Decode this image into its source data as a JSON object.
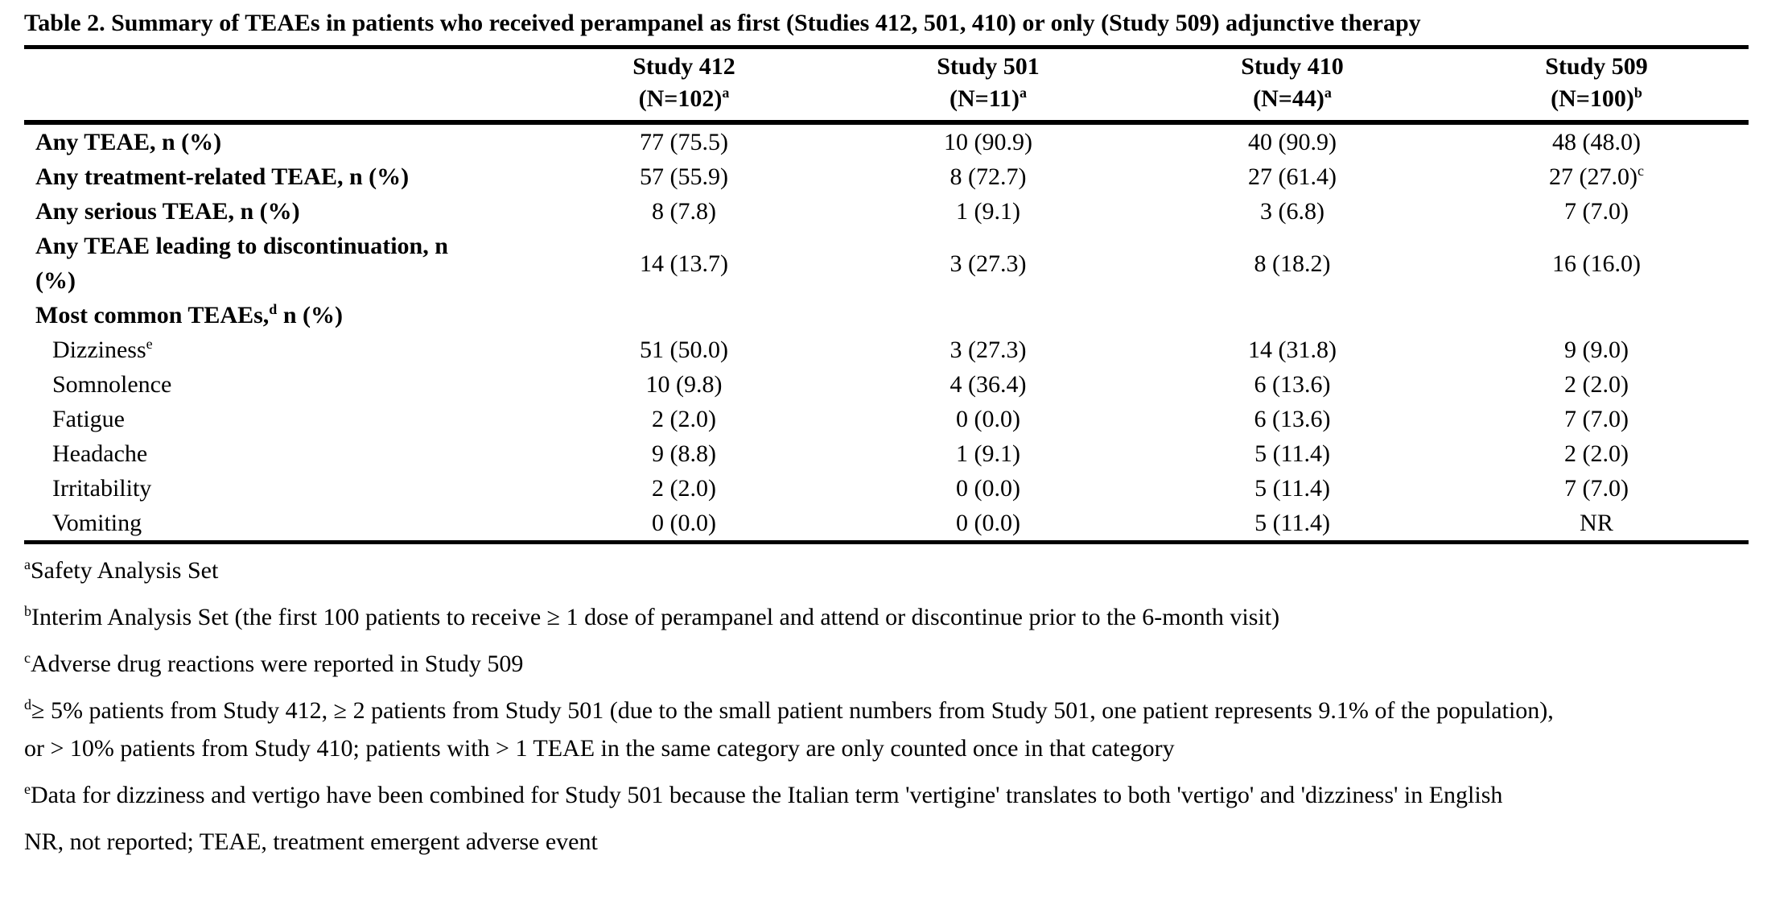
{
  "title": "Table 2. Summary of TEAEs in patients who received perampanel as first (Studies 412, 501, 410) or only (Study 509) adjunctive therapy",
  "colors": {
    "text": "#000000",
    "background": "#ffffff",
    "rules": "#000000"
  },
  "table": {
    "columns": [
      {
        "study": "Study 412",
        "n": "(N=102)",
        "sup": "a"
      },
      {
        "study": "Study 501",
        "n": "(N=11)",
        "sup": "a"
      },
      {
        "study": "Study 410",
        "n": "(N=44)",
        "sup": "a"
      },
      {
        "study": "Study 509",
        "n": "(N=100)",
        "sup": "b"
      }
    ],
    "rows": [
      {
        "bold": true,
        "indent": false,
        "label": [
          {
            "t": "Any TEAE, n (%)"
          }
        ],
        "values": [
          "77 (75.5)",
          "10 (90.9)",
          "40 (90.9)",
          "48 (48.0)"
        ]
      },
      {
        "bold": true,
        "indent": false,
        "label": [
          {
            "t": "Any treatment-related TEAE, n (%)"
          }
        ],
        "values": [
          "57 (55.9)",
          "8 (72.7)",
          "27 (61.4)",
          {
            "t": "27 (27.0)",
            "sup": "c"
          }
        ]
      },
      {
        "bold": true,
        "indent": false,
        "label": [
          {
            "t": "Any serious TEAE, n (%)"
          }
        ],
        "values": [
          "8 (7.8)",
          "1 (9.1)",
          "3 (6.8)",
          "7 (7.0)"
        ]
      },
      {
        "bold": true,
        "indent": false,
        "label": [
          {
            "t": "Any TEAE leading to discontinuation, n"
          }
        ],
        "label_line2": "(%)",
        "values": [
          "14 (13.7)",
          "3 (27.3)",
          "8 (18.2)",
          "16 (16.0)"
        ]
      },
      {
        "bold": true,
        "indent": false,
        "label": [
          {
            "t": "Most common TEAEs,"
          },
          {
            "t": "d",
            "sup": true
          },
          {
            "t": " n (%)"
          }
        ],
        "values": [
          "",
          "",
          "",
          ""
        ]
      },
      {
        "bold": false,
        "indent": true,
        "label": [
          {
            "t": "Dizziness"
          },
          {
            "t": "e",
            "sup": true
          }
        ],
        "values": [
          "51 (50.0)",
          "3 (27.3)",
          "14 (31.8)",
          "9 (9.0)"
        ]
      },
      {
        "bold": false,
        "indent": true,
        "label": [
          {
            "t": "Somnolence"
          }
        ],
        "values": [
          "10 (9.8)",
          "4 (36.4)",
          "6 (13.6)",
          "2 (2.0)"
        ]
      },
      {
        "bold": false,
        "indent": true,
        "label": [
          {
            "t": "Fatigue"
          }
        ],
        "values": [
          "2 (2.0)",
          "0 (0.0)",
          "6 (13.6)",
          "7 (7.0)"
        ]
      },
      {
        "bold": false,
        "indent": true,
        "label": [
          {
            "t": "Headache"
          }
        ],
        "values": [
          "9 (8.8)",
          "1 (9.1)",
          "5 (11.4)",
          "2 (2.0)"
        ]
      },
      {
        "bold": false,
        "indent": true,
        "label": [
          {
            "t": "Irritability"
          }
        ],
        "values": [
          "2 (2.0)",
          "0 (0.0)",
          "5 (11.4)",
          "7 (7.0)"
        ]
      },
      {
        "bold": false,
        "indent": true,
        "label": [
          {
            "t": "Vomiting"
          }
        ],
        "values": [
          "0 (0.0)",
          "0 (0.0)",
          "5 (11.4)",
          "NR"
        ]
      }
    ]
  },
  "footnotes": [
    {
      "sup": "a",
      "lines": [
        "Safety Analysis Set"
      ]
    },
    {
      "sup": "b",
      "lines": [
        "Interim Analysis Set (the first 100 patients to receive ≥ 1 dose of perampanel and attend or discontinue prior to the 6-month visit)"
      ]
    },
    {
      "sup": "c",
      "lines": [
        "Adverse drug reactions were reported in Study 509"
      ]
    },
    {
      "sup": "d",
      "lines": [
        "≥ 5% patients from Study 412, ≥ 2 patients from Study 501 (due to the small patient numbers from Study 501, one patient represents 9.1% of the population),",
        "or > 10% patients from Study 410; patients with > 1 TEAE in the same category are only counted once in that category"
      ]
    },
    {
      "sup": "e",
      "lines": [
        "Data for dizziness and vertigo have been combined for Study 501 because the Italian term 'vertigine' translates to both 'vertigo' and 'dizziness' in English"
      ]
    },
    {
      "sup": "",
      "lines": [
        "NR, not reported; TEAE, treatment emergent adverse event"
      ]
    }
  ]
}
